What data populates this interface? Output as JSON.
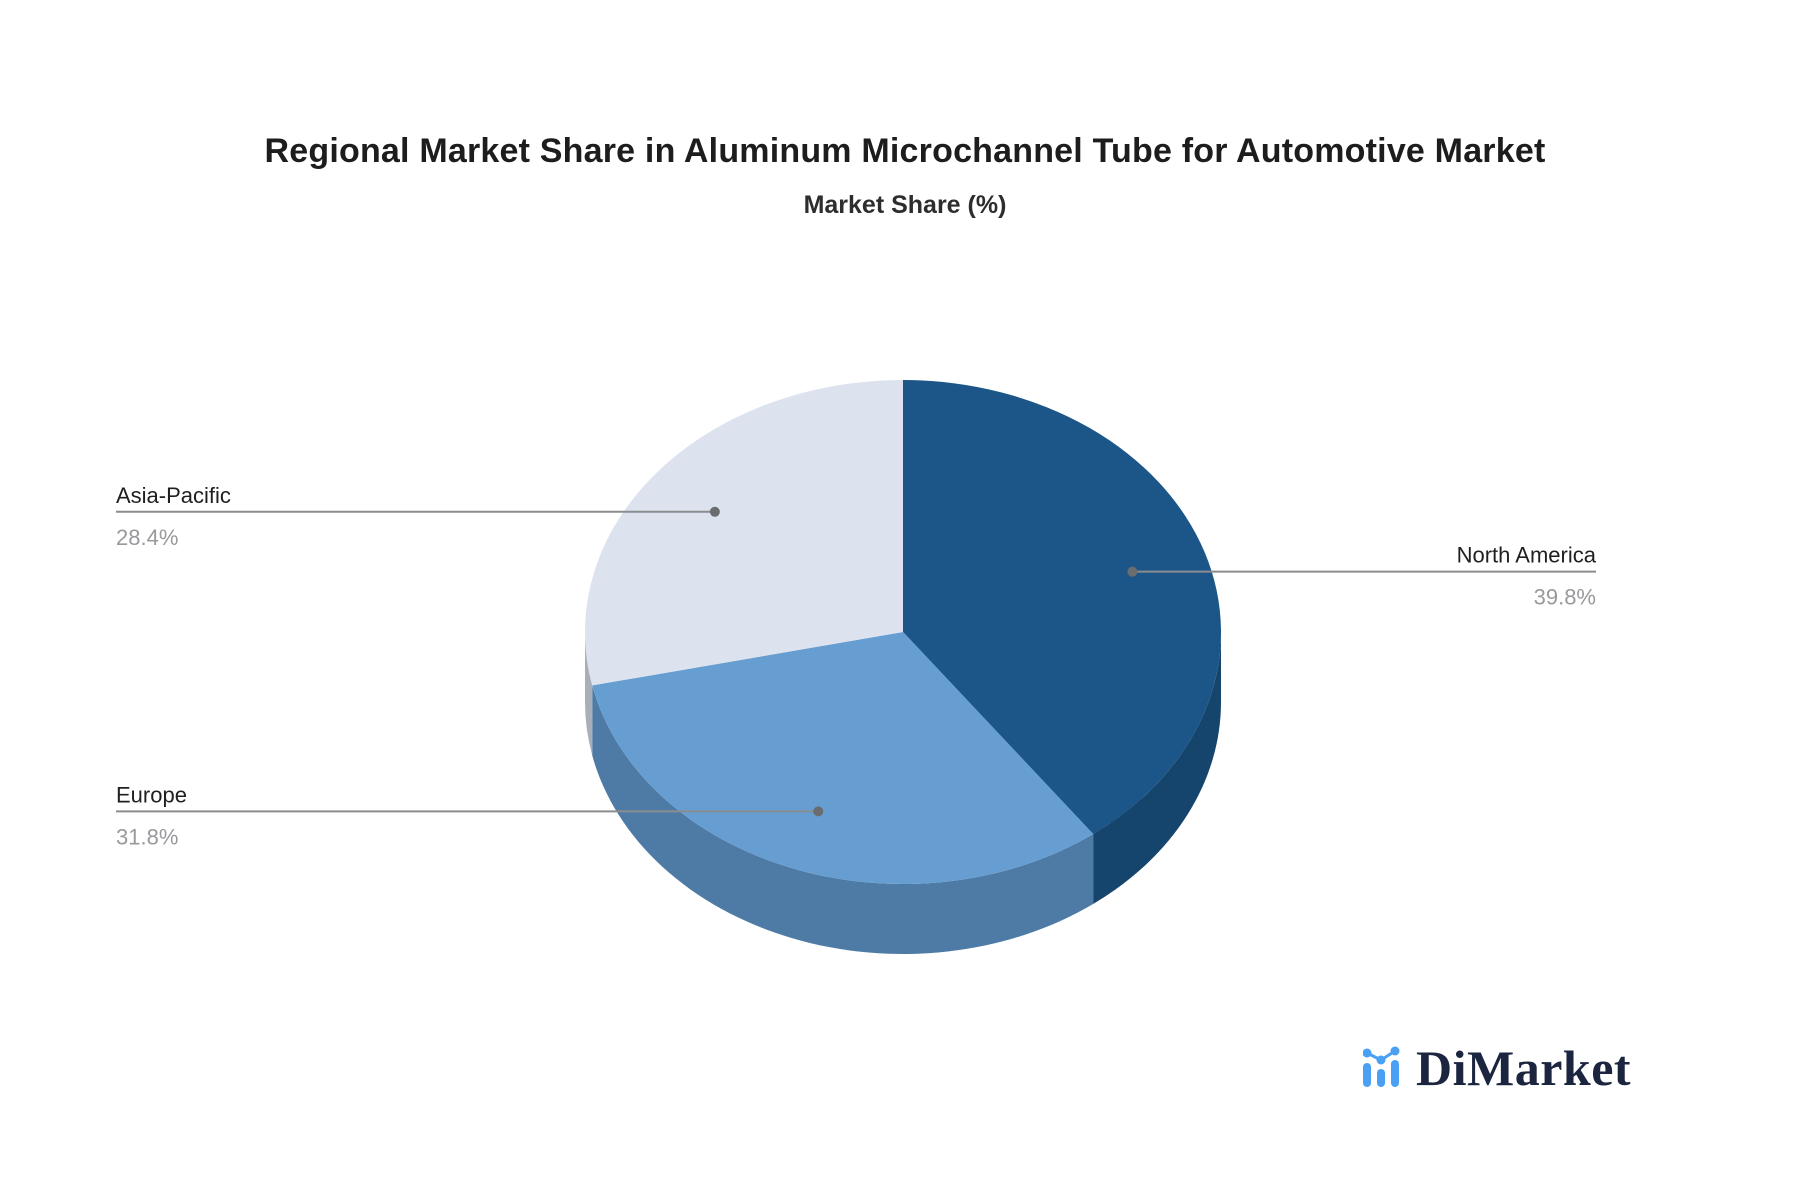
{
  "chart_data": {
    "type": "pie",
    "style": "3d",
    "title": "Regional Market Share in Aluminum Microchannel Tube for Automotive Market",
    "subtitle": "Market Share (%)",
    "unit": "%",
    "start_angle": "12-o-clock",
    "direction": "clockwise",
    "legend_position": "none",
    "segments": [
      {
        "label": "North America",
        "value": 39.8,
        "display": "39.8%",
        "color": "#1c5689",
        "side_color": "#15446c"
      },
      {
        "label": "Europe",
        "value": 31.8,
        "display": "31.8%",
        "color": "#679ed2",
        "side_color": "#4e7ba6"
      },
      {
        "label": "Asia-Pacific",
        "value": 28.4,
        "display": "28.4%",
        "color": "#dde3ee",
        "side_color": "#a8afb9"
      }
    ],
    "leader_line_color": "#8a8d90",
    "leader_dot_color": "#6a6d70",
    "label_name_color": "#1e1f21",
    "label_value_color": "#97999c"
  },
  "branding": {
    "name": "DiMarket",
    "icon": "bar-chart-logo-icon",
    "icon_color": "#4aa1f3",
    "text_color": "#1b2540"
  }
}
